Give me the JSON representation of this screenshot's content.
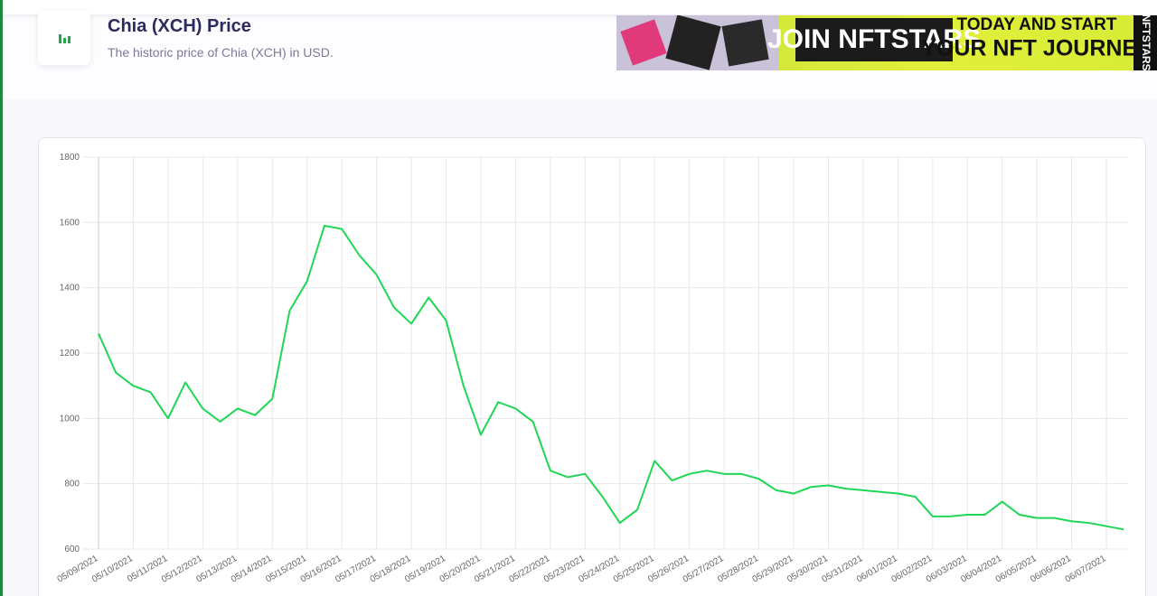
{
  "header": {
    "title": "Chia (XCH) Price",
    "subtitle": "The historic price of Chia (XCH) in USD."
  },
  "ad": {
    "line1": "JOIN NFTSTARS",
    "line2": "TODAY AND START",
    "line3": "YOUR NFT JOURNEY",
    "side": "NFTSTARS"
  },
  "chart_data": {
    "type": "line",
    "categories": [
      "05/09/2021",
      null,
      "05/10/2021",
      null,
      "05/11/2021",
      null,
      "05/12/2021",
      null,
      "05/13/2021",
      null,
      "05/14/2021",
      null,
      "05/15/2021",
      null,
      "05/16/2021",
      null,
      "05/17/2021",
      null,
      "05/18/2021",
      null,
      "05/19/2021",
      null,
      "05/20/2021",
      null,
      "05/21/2021",
      null,
      "05/22/2021",
      null,
      "05/23/2021",
      null,
      "05/24/2021",
      null,
      "05/25/2021",
      null,
      "05/26/2021",
      null,
      "05/27/2021",
      null,
      "05/28/2021",
      null,
      "05/29/2021",
      null,
      "05/30/2021",
      null,
      "05/31/2021",
      null,
      "06/01/2021",
      null,
      "06/02/2021",
      null,
      "06/03/2021",
      null,
      "06/04/2021",
      null,
      "06/05/2021",
      null,
      "06/06/2021",
      null,
      "06/07/2021",
      null
    ],
    "series": [
      {
        "name": "Price",
        "color": "#1fd655",
        "values": [
          1260,
          1140,
          1100,
          1080,
          1000,
          1110,
          1030,
          990,
          1030,
          1010,
          1060,
          1330,
          1420,
          1590,
          1580,
          1500,
          1440,
          1340,
          1290,
          1370,
          1300,
          1100,
          950,
          1050,
          1030,
          990,
          840,
          820,
          830,
          760,
          680,
          720,
          870,
          810,
          830,
          840,
          830,
          830,
          815,
          780,
          770,
          790,
          795,
          785,
          780,
          775,
          770,
          760,
          700,
          700,
          705,
          705,
          745,
          705,
          695,
          695,
          685,
          680,
          670,
          660
        ]
      }
    ],
    "ylim": [
      600,
      1800
    ],
    "yticks": [
      600,
      800,
      1000,
      1200,
      1400,
      1600,
      1800
    ],
    "grid": true
  }
}
